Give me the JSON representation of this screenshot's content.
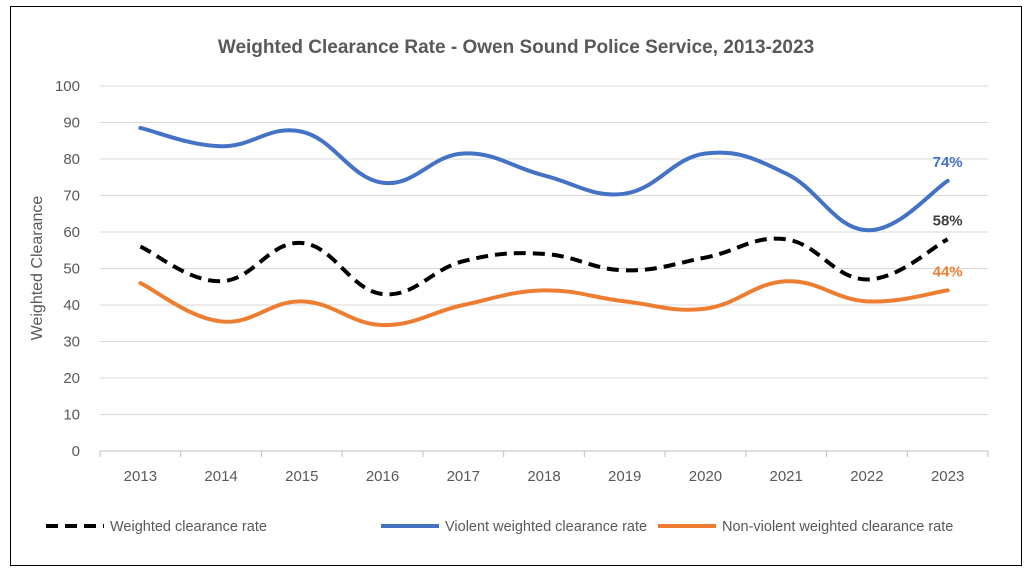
{
  "chart_data": {
    "type": "line",
    "title": "Weighted Clearance Rate - Owen Sound Police Service, 2013-2023",
    "xlabel": "",
    "ylabel": "Weighted Clearance",
    "ylim": [
      0,
      100
    ],
    "yticks": [
      0,
      10,
      20,
      30,
      40,
      50,
      60,
      70,
      80,
      90,
      100
    ],
    "categories": [
      "2013",
      "2014",
      "2015",
      "2016",
      "2017",
      "2018",
      "2019",
      "2020",
      "2021",
      "2022",
      "2023"
    ],
    "grid": true,
    "legend_position": "bottom",
    "series": [
      {
        "name": "Weighted clearance rate",
        "color": "#000000",
        "style": "dashed",
        "values": [
          56,
          46.5,
          57,
          43,
          52,
          54,
          49.5,
          53,
          58,
          47,
          58
        ],
        "end_label": "58%"
      },
      {
        "name": "Violent weighted clearance rate",
        "color": "#4472c4",
        "style": "solid",
        "values": [
          88.5,
          83.5,
          87.5,
          73.5,
          81.5,
          75.5,
          70.5,
          81.5,
          76,
          60.5,
          74
        ],
        "end_label": "74%"
      },
      {
        "name": "Non-violent weighted clearance rate",
        "color": "#ed7d31",
        "style": "solid",
        "values": [
          46,
          35.5,
          41,
          34.5,
          40,
          44,
          41,
          39,
          46.5,
          41,
          44
        ],
        "end_label": "44%"
      }
    ]
  }
}
